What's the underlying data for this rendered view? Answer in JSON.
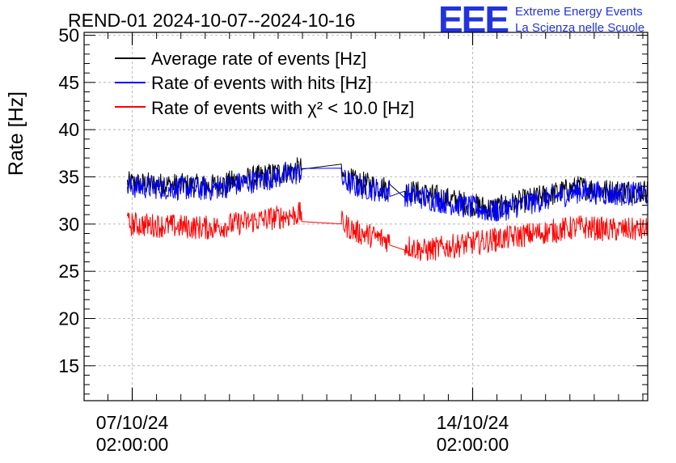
{
  "chart_data": {
    "type": "line",
    "title": "REND-01 2024-10-07--2024-10-16",
    "xlabel": "",
    "ylabel": "Rate [Hz]",
    "xlim_days": [
      -0.99,
      10.6
    ],
    "ylim": [
      11.3,
      50.3
    ],
    "yticks": [
      15,
      20,
      25,
      30,
      35,
      40,
      45,
      50
    ],
    "xticks": [
      {
        "day": 0,
        "date": "07/10/24",
        "time": "02:00:00"
      },
      {
        "day": 7,
        "date": "14/10/24",
        "time": "02:00:00"
      }
    ],
    "grid": true,
    "legend_position": "top-left",
    "series": [
      {
        "name": "Average rate of events [Hz]",
        "color": "#000000",
        "points": [
          [
            -0.1,
            34.3
          ],
          [
            1.6,
            34.0
          ],
          [
            3.6,
            36.0
          ],
          [
            4.1,
            35.6
          ],
          [
            4.6,
            34.4
          ],
          [
            6.0,
            33.2
          ],
          [
            7.4,
            31.6
          ],
          [
            9.2,
            33.9
          ],
          [
            9.8,
            33.5
          ]
        ]
      },
      {
        "name": "Rate of events with hits [Hz]",
        "color": "#0000ff",
        "points": [
          [
            -0.1,
            34.0
          ],
          [
            1.6,
            33.7
          ],
          [
            3.6,
            35.6
          ],
          [
            4.1,
            35.2
          ],
          [
            4.6,
            34.0
          ],
          [
            6.0,
            32.8
          ],
          [
            7.4,
            31.3
          ],
          [
            9.2,
            33.5
          ],
          [
            9.8,
            33.2
          ]
        ]
      },
      {
        "name": "Rate of events with χ² < 10.0 [Hz]",
        "color": "#ff0000",
        "points": [
          [
            -0.1,
            30.0
          ],
          [
            1.6,
            29.6
          ],
          [
            3.6,
            31.2
          ],
          [
            4.1,
            30.8
          ],
          [
            4.6,
            29.2
          ],
          [
            6.0,
            27.2
          ],
          [
            7.4,
            28.3
          ],
          [
            9.2,
            29.7
          ],
          [
            9.8,
            29.4
          ]
        ]
      }
    ],
    "data_segments_days": [
      [
        -0.1,
        3.5
      ],
      [
        4.3,
        5.3
      ],
      [
        5.6,
        7.5
      ],
      [
        7.45,
        10.6
      ]
    ],
    "noise_amplitude_hz": 1.3
  },
  "logo": {
    "mark": "EEE",
    "line1": "Extreme Energy Events",
    "line2": "La Scienza nelle Scuole"
  },
  "colors": {
    "average": "#000000",
    "hits": "#0000ff",
    "chi2": "#ff0000",
    "logo": "#2233dd",
    "grid": "#aaaaaa"
  }
}
